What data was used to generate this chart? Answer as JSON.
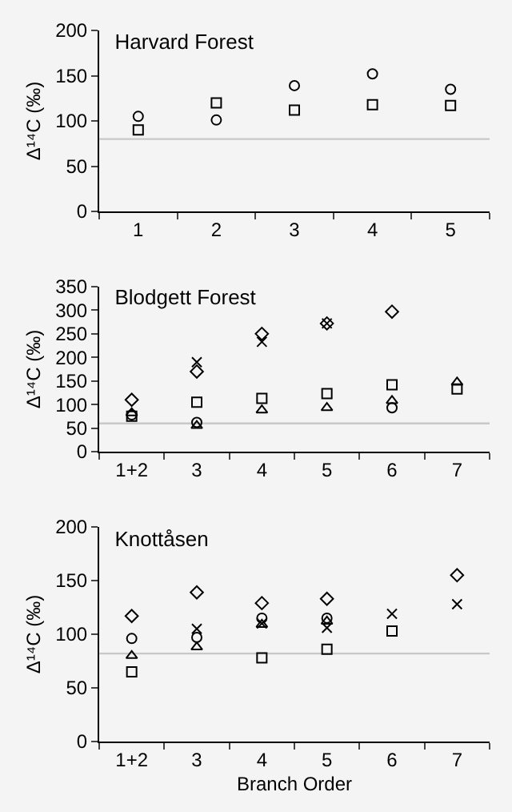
{
  "chart_data": [
    {
      "type": "scatter",
      "title": "Harvard Forest",
      "ylabel": "Δ¹⁴C (‰)",
      "categories": [
        "1",
        "2",
        "3",
        "4",
        "5"
      ],
      "ylim": [
        0,
        200
      ],
      "yticks": [
        0,
        50,
        100,
        150,
        200
      ],
      "grid": false,
      "series": [
        {
          "color": "#000000",
          "marker": "circle",
          "values": [
            105,
            101,
            139,
            152,
            135
          ]
        },
        {
          "color": "#000000",
          "marker": "square",
          "values": [
            90,
            120,
            112,
            118,
            117
          ]
        }
      ],
      "ref_lines": [
        {
          "axis": "y",
          "value": 80,
          "color": "#c8c8c8"
        }
      ]
    },
    {
      "type": "scatter",
      "title": "Blodgett Forest",
      "ylabel": "Δ¹⁴C (‰)",
      "categories": [
        "1+2",
        "3",
        "4",
        "5",
        "6",
        "7"
      ],
      "ylim": [
        0,
        350
      ],
      "yticks": [
        0,
        50,
        100,
        150,
        200,
        250,
        300,
        350
      ],
      "grid": false,
      "series": [
        {
          "color": "#000000",
          "marker": "diamond",
          "values": [
            110,
            170,
            250,
            272,
            297,
            null
          ]
        },
        {
          "color": "#000000",
          "marker": "cross",
          "values": [
            null,
            190,
            233,
            272,
            null,
            null
          ]
        },
        {
          "color": "#000000",
          "marker": "square",
          "values": [
            75,
            105,
            113,
            123,
            142,
            133
          ]
        },
        {
          "color": "#000000",
          "marker": "triangle",
          "values": [
            82,
            55,
            88,
            93,
            108,
            147
          ]
        },
        {
          "color": "#000000",
          "marker": "circle",
          "values": [
            78,
            62,
            null,
            null,
            93,
            null
          ]
        }
      ],
      "ref_lines": [
        {
          "axis": "y",
          "value": 60,
          "color": "#c8c8c8"
        }
      ]
    },
    {
      "type": "scatter",
      "title": "Knottåsen",
      "ylabel": "Δ¹⁴C (‰)",
      "xlabel": "Branch Order",
      "categories": [
        "1+2",
        "3",
        "4",
        "5",
        "6",
        "7"
      ],
      "ylim": [
        0,
        200
      ],
      "yticks": [
        0,
        50,
        100,
        150,
        200
      ],
      "grid": false,
      "series": [
        {
          "color": "#000000",
          "marker": "diamond",
          "values": [
            117,
            139,
            129,
            133,
            null,
            155
          ]
        },
        {
          "color": "#000000",
          "marker": "cross",
          "values": [
            null,
            105,
            110,
            106,
            119,
            128
          ]
        },
        {
          "color": "#000000",
          "marker": "circle",
          "values": [
            96,
            97,
            115,
            115,
            null,
            null
          ]
        },
        {
          "color": "#000000",
          "marker": "triangle",
          "values": [
            80,
            88,
            109,
            112,
            null,
            null
          ]
        },
        {
          "color": "#000000",
          "marker": "square",
          "values": [
            65,
            null,
            78,
            86,
            103,
            null
          ]
        }
      ],
      "ref_lines": [
        {
          "axis": "y",
          "value": 82,
          "color": "#c8c8c8"
        }
      ]
    }
  ]
}
